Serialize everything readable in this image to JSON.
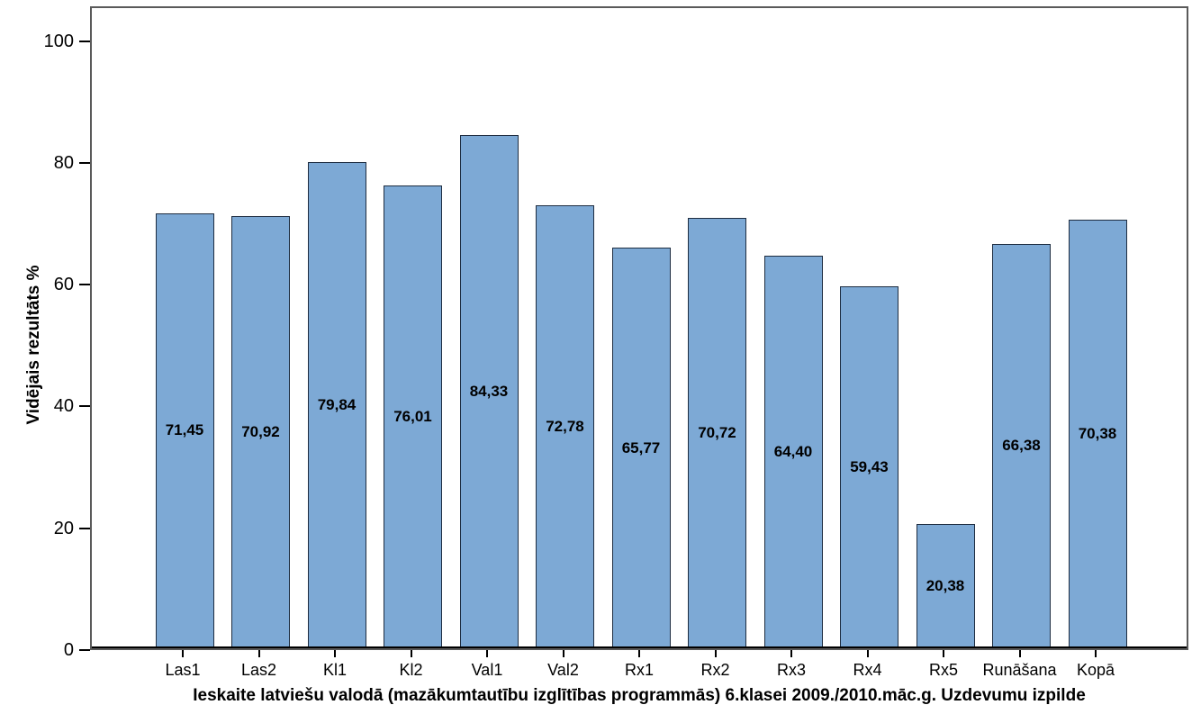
{
  "chart_data": {
    "type": "bar",
    "title": "",
    "xlabel": "Ieskaite latviešu valodā (mazākumtautību izglītības programmās) 6.klasei 2009./2010.māc.g. Uzdevumu izpilde",
    "ylabel": "Vidējais rezultāts %",
    "categories": [
      "Las1",
      "Las2",
      "Kl1",
      "Kl2",
      "Val1",
      "Val2",
      "Rx1",
      "Rx2",
      "Rx3",
      "Rx4",
      "Rx5",
      "Runāšana",
      "Kopā"
    ],
    "values": [
      71.45,
      70.92,
      79.84,
      76.01,
      84.33,
      72.78,
      65.77,
      70.72,
      64.4,
      59.43,
      20.38,
      66.38,
      70.38
    ],
    "value_labels": [
      "71,45",
      "70,92",
      "79,84",
      "76,01",
      "84,33",
      "72,78",
      "65,77",
      "70,72",
      "64,40",
      "59,43",
      "20,38",
      "66,38",
      "70,38"
    ],
    "yticks": [
      0,
      20,
      40,
      60,
      80,
      100
    ],
    "ylim": [
      0,
      105.7
    ],
    "grid": false,
    "legend": null,
    "colors": {
      "bar_fill": "#7DA9D5",
      "bar_border": "#1E2D41",
      "axis_line": "#000000",
      "frame_border": "#5a5a5a",
      "text": "#000000",
      "background": "#ffffff"
    }
  }
}
